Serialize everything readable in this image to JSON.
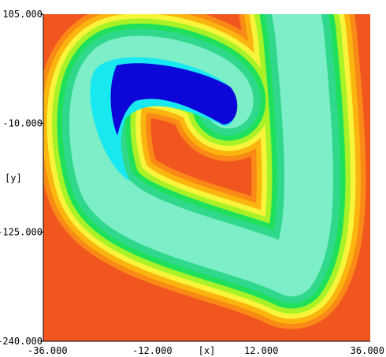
{
  "chart_data": {
    "type": "heatmap",
    "xlabel": "[x]",
    "ylabel": "[y]",
    "xlim": [
      -36.0,
      36.0
    ],
    "ylim": [
      -240.0,
      105.0
    ],
    "x_ticks": [
      {
        "value": -36.0,
        "label": "-36.000"
      },
      {
        "value": -12.0,
        "label": "-12.000"
      },
      {
        "value": 12.0,
        "label": "12.000"
      },
      {
        "value": 36.0,
        "label": "36.000"
      }
    ],
    "y_ticks": [
      {
        "value": 105.0,
        "label": "105.000"
      },
      {
        "value": -10.0,
        "label": "-10.000"
      },
      {
        "value": -125.0,
        "label": "-125.000"
      },
      {
        "value": -240.0,
        "label": "-240.000"
      }
    ],
    "background_color": "#f2561f",
    "levels": [
      {
        "level": 1,
        "color": "#f98a16"
      },
      {
        "level": 2,
        "color": "#fbb50f"
      },
      {
        "level": 3,
        "color": "#f7f43a"
      },
      {
        "level": 4,
        "color": "#a9f227"
      },
      {
        "level": 5,
        "color": "#1ee05a"
      },
      {
        "level": 6,
        "color": "#2fd88b"
      },
      {
        "level": 7,
        "color": "#7ceec8"
      },
      {
        "level": 8,
        "color": "#18e8ef"
      },
      {
        "level": 9,
        "color": "#0c07d8"
      }
    ]
  }
}
